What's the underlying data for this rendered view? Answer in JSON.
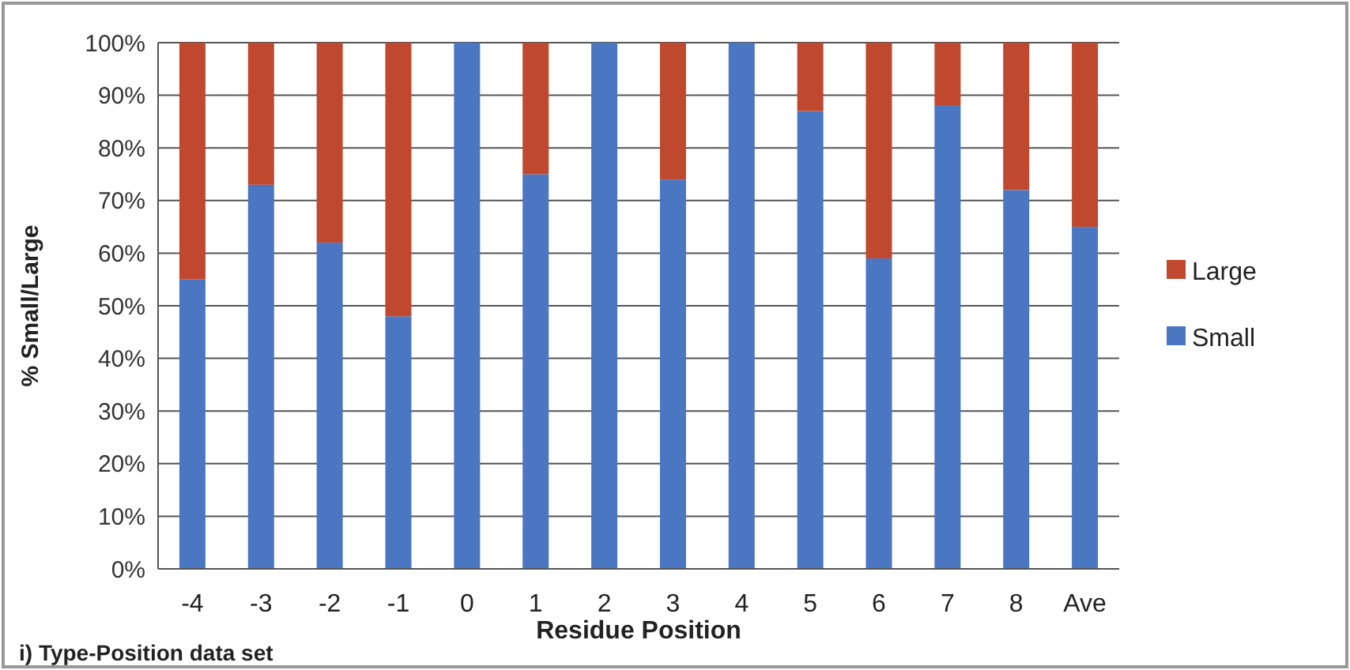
{
  "chart_data": {
    "type": "bar",
    "stacked": true,
    "xlabel": "Residue Position",
    "ylabel": "% Small/Large",
    "categories": [
      "-4",
      "-3",
      "-2",
      "-1",
      "0",
      "1",
      "2",
      "3",
      "4",
      "5",
      "6",
      "7",
      "8",
      "Ave"
    ],
    "series": [
      {
        "name": "Small",
        "color": "#4a76c2",
        "values": [
          55,
          73,
          62,
          48,
          100,
          75,
          100,
          74,
          100,
          87,
          59,
          88,
          72,
          65
        ]
      },
      {
        "name": "Large",
        "color": "#c0482e",
        "values": [
          45,
          27,
          38,
          52,
          0,
          25,
          0,
          26,
          0,
          13,
          41,
          12,
          28,
          35
        ]
      }
    ],
    "ylim": [
      0,
      100
    ],
    "yticks": [
      {
        "value": 0,
        "label": "0%"
      },
      {
        "value": 10,
        "label": "10%"
      },
      {
        "value": 20,
        "label": "20%"
      },
      {
        "value": 30,
        "label": "30%"
      },
      {
        "value": 40,
        "label": "40%"
      },
      {
        "value": 50,
        "label": "50%"
      },
      {
        "value": 60,
        "label": "60%"
      },
      {
        "value": 70,
        "label": "70%"
      },
      {
        "value": 80,
        "label": "80%"
      },
      {
        "value": 90,
        "label": "90%"
      },
      {
        "value": 100,
        "label": "100%"
      }
    ],
    "grid": "y",
    "legend": "right",
    "annotations": [
      "i) Type-Position data set"
    ]
  }
}
